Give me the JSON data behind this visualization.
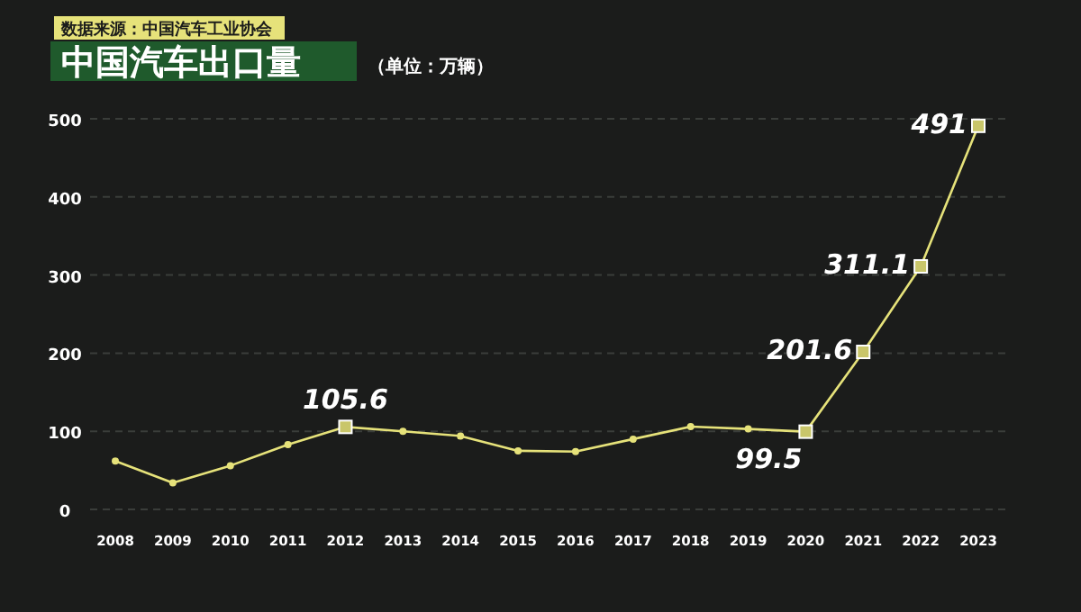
{
  "chart_data": {
    "type": "line",
    "title": "中国汽车出口量",
    "subtitle": "（单位：万辆）",
    "annotations": [
      "数据来源：中国汽车工业协会"
    ],
    "categories": [
      "2008",
      "2009",
      "2010",
      "2011",
      "2012",
      "2013",
      "2014",
      "2015",
      "2016",
      "2017",
      "2018",
      "2019",
      "2020",
      "2021",
      "2022",
      "2023"
    ],
    "series": [
      {
        "color": "#e6e27a",
        "values": [
          62,
          34,
          56,
          83,
          105.6,
          100,
          94,
          75,
          74,
          90,
          106,
          103,
          99.5,
          201.6,
          311.1,
          491
        ],
        "value_labels": [
          null,
          null,
          null,
          null,
          "105.6",
          null,
          null,
          null,
          null,
          null,
          null,
          null,
          "99.5",
          "201.6",
          "311.1",
          "491"
        ]
      }
    ],
    "ylim": [
      0,
      500
    ],
    "yticks": [
      0,
      100,
      200,
      300,
      400,
      500
    ],
    "grid": "y",
    "marker": "circle",
    "line_style": "solid"
  }
}
